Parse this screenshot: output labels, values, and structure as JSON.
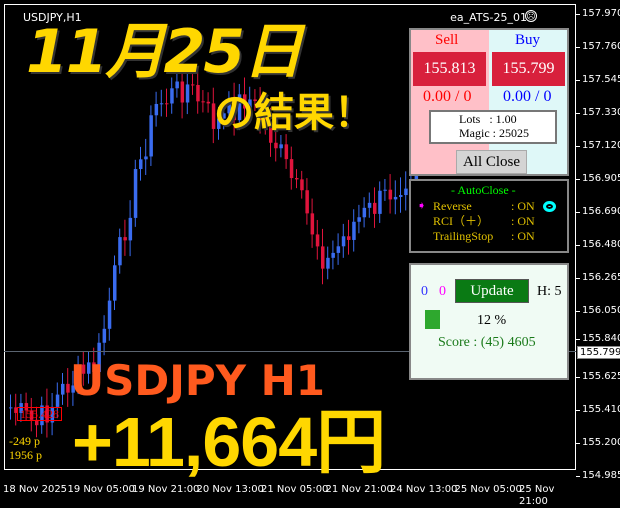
{
  "chart": {
    "symbol": "USDJPY,H1",
    "ea_name": "ea_ATS-25_01",
    "ea_status_icon": "sad-face-icon",
    "price_labels": [
      "157.970",
      "157.760",
      "157.545",
      "157.330",
      "157.120",
      "156.905",
      "156.690",
      "156.480",
      "156.265",
      "156.050",
      "155.840",
      "155.625",
      "155.410",
      "155.200",
      "154.985"
    ],
    "current_price": "155.799",
    "time_labels": [
      "18 Nov 2025",
      "19 Nov 05:00",
      "19 Nov 21:00",
      "20 Nov 13:00",
      "21 Nov 05:00",
      "21 Nov 21:00",
      "24 Nov 13:00",
      "25 Nov 05:00",
      "25 Nov 21:00"
    ],
    "price_tag": "155.428",
    "pl_line1": "-249 p",
    "pl_line2": "1956 p"
  },
  "overlay": {
    "date": "11月25日",
    "result": "の結果！",
    "pair": "USDJPY H1",
    "profit": "+11,664円"
  },
  "trade_panel": {
    "sell_label": "Sell",
    "buy_label": "Buy",
    "sell_price": "155.813",
    "buy_price": "155.799",
    "sell_pl": "0.00 / 0",
    "buy_pl": "0.00 / 0",
    "lots": "Lots   : 1.00",
    "magic": "Magic : 25025",
    "all_close": "All Close"
  },
  "autoclose": {
    "title": "- AutoClose -",
    "rows": [
      {
        "label": "Reverse",
        "value": ": ON"
      },
      {
        "label": "RCI（＋）",
        "value": ": ON"
      },
      {
        "label": "TrailingStop",
        "value": ": ON"
      }
    ]
  },
  "status_panel": {
    "count_blue": "0",
    "count_magenta": "0",
    "update": "Update",
    "h": "H: 5",
    "progress_percent": "12 %",
    "score": "Score : (45) 4605"
  },
  "colors": {
    "bull": "#3a6cf0",
    "bear": "#e0143c",
    "gold": "#ffd700",
    "orange": "#ff5a1e"
  }
}
